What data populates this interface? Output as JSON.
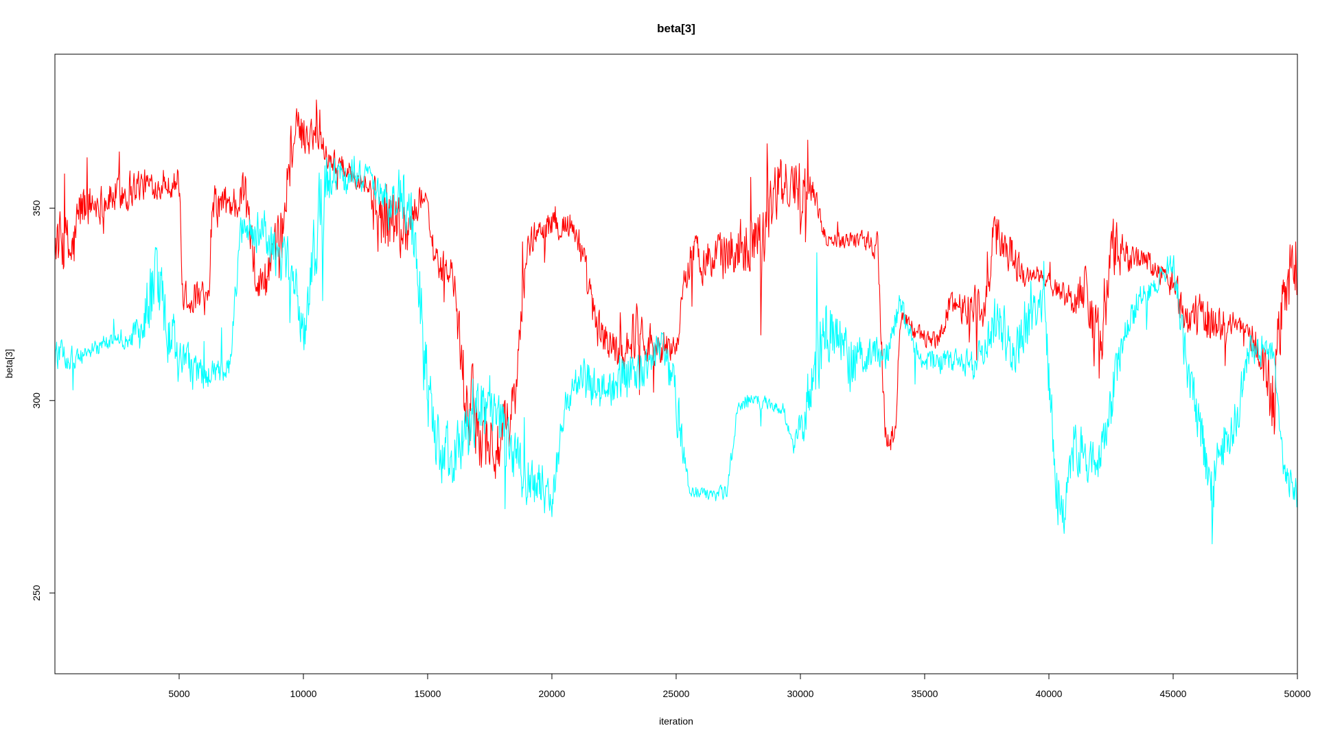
{
  "chart_data": {
    "type": "line",
    "title": "beta[3]",
    "xlabel": "iteration",
    "ylabel": "beta[3]",
    "xlim": [
      1,
      50000
    ],
    "ylim": [
      229,
      390
    ],
    "x_ticks": [
      5000,
      10000,
      15000,
      20000,
      25000,
      30000,
      35000,
      40000,
      45000,
      50000
    ],
    "y_ticks": [
      250,
      300,
      350
    ],
    "grid": false,
    "legend": "none",
    "series": [
      {
        "color": "#ff0000",
        "trace": [
          [
            0,
            342,
            10
          ],
          [
            700,
            338,
            12
          ],
          [
            1000,
            350,
            10
          ],
          [
            2000,
            352,
            6
          ],
          [
            3000,
            355,
            8
          ],
          [
            3300,
            356,
            6
          ],
          [
            4500,
            356,
            4
          ],
          [
            5000,
            357,
            6
          ],
          [
            5100,
            328,
            7
          ],
          [
            6200,
            325,
            5
          ],
          [
            6300,
            350,
            8
          ],
          [
            7500,
            352,
            6
          ],
          [
            7600,
            356,
            12
          ],
          [
            8100,
            329,
            6
          ],
          [
            9000,
            336,
            14
          ],
          [
            9500,
            368,
            10
          ],
          [
            10500,
            370,
            6
          ],
          [
            11000,
            363,
            4
          ],
          [
            12500,
            357,
            4
          ],
          [
            13000,
            348,
            14
          ],
          [
            14200,
            345,
            10
          ],
          [
            14900,
            355,
            4
          ],
          [
            15300,
            335,
            6
          ],
          [
            16000,
            333,
            6
          ],
          [
            16500,
            300,
            14
          ],
          [
            17800,
            286,
            12
          ],
          [
            18500,
            300,
            10
          ],
          [
            19000,
            340,
            6
          ],
          [
            19500,
            345,
            4
          ],
          [
            20500,
            346,
            6
          ],
          [
            21000,
            344,
            6
          ],
          [
            21800,
            318,
            8
          ],
          [
            22800,
            312,
            6
          ],
          [
            23500,
            320,
            10
          ],
          [
            24000,
            314,
            8
          ],
          [
            25000,
            314,
            4
          ],
          [
            25500,
            338,
            8
          ],
          [
            26500,
            336,
            8
          ],
          [
            27500,
            340,
            10
          ],
          [
            28500,
            344,
            12
          ],
          [
            29000,
            355,
            10
          ],
          [
            30000,
            356,
            10
          ],
          [
            30500,
            355,
            4
          ],
          [
            31000,
            342,
            3
          ],
          [
            32500,
            342,
            3
          ],
          [
            33100,
            340,
            6
          ],
          [
            33400,
            290,
            5
          ],
          [
            33800,
            290,
            5
          ],
          [
            34000,
            322,
            4
          ],
          [
            34800,
            317,
            3
          ],
          [
            35500,
            315,
            3
          ],
          [
            36000,
            325,
            5
          ],
          [
            37500,
            325,
            8
          ],
          [
            37800,
            344,
            10
          ],
          [
            38500,
            338,
            8
          ],
          [
            39000,
            332,
            4
          ],
          [
            39500,
            333,
            3
          ],
          [
            40500,
            328,
            4
          ],
          [
            41000,
            326,
            6
          ],
          [
            41500,
            330,
            10
          ],
          [
            42000,
            312,
            14
          ],
          [
            42500,
            338,
            14
          ],
          [
            43000,
            338,
            6
          ],
          [
            44000,
            336,
            4
          ],
          [
            44500,
            333,
            4
          ],
          [
            45000,
            330,
            6
          ],
          [
            45500,
            322,
            8
          ],
          [
            46500,
            320,
            8
          ],
          [
            47500,
            320,
            4
          ],
          [
            48000,
            318,
            3
          ],
          [
            48500,
            312,
            10
          ],
          [
            49000,
            300,
            14
          ],
          [
            49500,
            330,
            14
          ],
          [
            50000,
            335,
            14
          ]
        ]
      },
      {
        "color": "#00ffff",
        "trace": [
          [
            0,
            312,
            6
          ],
          [
            500,
            311,
            4
          ],
          [
            1200,
            312,
            3
          ],
          [
            2000,
            315,
            3
          ],
          [
            3000,
            316,
            3
          ],
          [
            3500,
            318,
            10
          ],
          [
            4000,
            330,
            14
          ],
          [
            4500,
            320,
            12
          ],
          [
            5000,
            310,
            8
          ],
          [
            6000,
            306,
            6
          ],
          [
            7000,
            308,
            4
          ],
          [
            7500,
            345,
            6
          ],
          [
            8500,
            344,
            8
          ],
          [
            9000,
            336,
            8
          ],
          [
            9500,
            335,
            8
          ],
          [
            10000,
            318,
            10
          ],
          [
            10500,
            345,
            16
          ],
          [
            11000,
            358,
            10
          ],
          [
            12000,
            360,
            6
          ],
          [
            12700,
            357,
            4
          ],
          [
            13500,
            350,
            8
          ],
          [
            14000,
            355,
            10
          ],
          [
            14500,
            340,
            12
          ],
          [
            15000,
            300,
            16
          ],
          [
            15500,
            285,
            10
          ],
          [
            16500,
            290,
            12
          ],
          [
            17500,
            300,
            10
          ],
          [
            18500,
            285,
            10
          ],
          [
            19000,
            280,
            10
          ],
          [
            20000,
            275,
            8
          ],
          [
            20500,
            298,
            6
          ],
          [
            21000,
            305,
            8
          ],
          [
            22000,
            305,
            8
          ],
          [
            23000,
            306,
            10
          ],
          [
            24000,
            311,
            6
          ],
          [
            24500,
            315,
            6
          ],
          [
            25000,
            300,
            10
          ],
          [
            25500,
            277,
            2
          ],
          [
            26500,
            275,
            2
          ],
          [
            27000,
            276,
            4
          ],
          [
            27500,
            300,
            3
          ],
          [
            28500,
            299,
            3
          ],
          [
            29300,
            298,
            2
          ],
          [
            29700,
            288,
            3
          ],
          [
            30300,
            300,
            12
          ],
          [
            31000,
            320,
            12
          ],
          [
            32000,
            310,
            10
          ],
          [
            32500,
            312,
            6
          ],
          [
            33500,
            312,
            6
          ],
          [
            34000,
            326,
            6
          ],
          [
            34500,
            315,
            4
          ],
          [
            35000,
            310,
            4
          ],
          [
            36500,
            310,
            4
          ],
          [
            37000,
            308,
            6
          ],
          [
            37500,
            315,
            6
          ],
          [
            38000,
            325,
            12
          ],
          [
            38500,
            310,
            8
          ],
          [
            39000,
            320,
            10
          ],
          [
            39800,
            325,
            6
          ],
          [
            40000,
            305,
            10
          ],
          [
            40500,
            265,
            12
          ],
          [
            41000,
            290,
            10
          ],
          [
            41500,
            285,
            8
          ],
          [
            42000,
            283,
            8
          ],
          [
            42500,
            300,
            10
          ],
          [
            43000,
            320,
            8
          ],
          [
            43500,
            325,
            6
          ],
          [
            44000,
            328,
            4
          ],
          [
            44500,
            332,
            4
          ],
          [
            45000,
            335,
            6
          ],
          [
            45500,
            310,
            8
          ],
          [
            46000,
            296,
            8
          ],
          [
            46500,
            275,
            10
          ],
          [
            47000,
            288,
            10
          ],
          [
            47500,
            295,
            8
          ],
          [
            48000,
            312,
            6
          ],
          [
            49000,
            312,
            4
          ],
          [
            49500,
            280,
            6
          ],
          [
            50000,
            275,
            6
          ]
        ]
      }
    ]
  }
}
